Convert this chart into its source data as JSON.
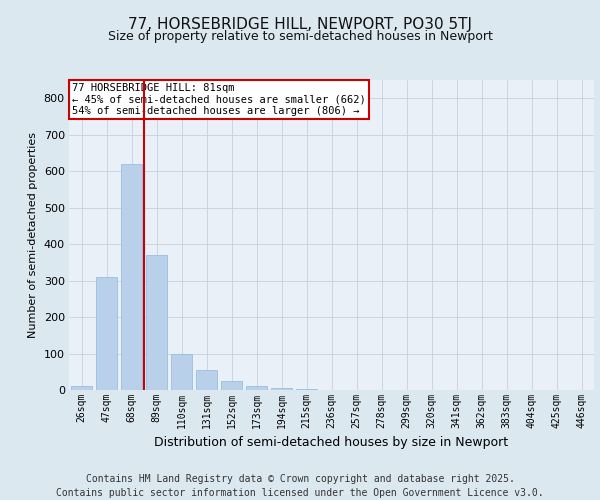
{
  "title_line1": "77, HORSEBRIDGE HILL, NEWPORT, PO30 5TJ",
  "title_line2": "Size of property relative to semi-detached houses in Newport",
  "xlabel": "Distribution of semi-detached houses by size in Newport",
  "ylabel": "Number of semi-detached properties",
  "bar_color": "#b8d0ea",
  "bar_edge_color": "#8fb8dc",
  "background_color": "#dce8f0",
  "plot_bg_color": "#eaf0f8",
  "grid_color": "#c0ccd8",
  "vline_color": "#cc0000",
  "vline_x": 2.5,
  "categories": [
    "26sqm",
    "47sqm",
    "68sqm",
    "89sqm",
    "110sqm",
    "131sqm",
    "152sqm",
    "173sqm",
    "194sqm",
    "215sqm",
    "236sqm",
    "257sqm",
    "278sqm",
    "299sqm",
    "320sqm",
    "341sqm",
    "362sqm",
    "383sqm",
    "404sqm",
    "425sqm",
    "446sqm"
  ],
  "values": [
    10,
    310,
    620,
    370,
    100,
    55,
    25,
    10,
    5,
    2,
    1,
    0,
    0,
    0,
    0,
    0,
    0,
    0,
    0,
    0,
    0
  ],
  "ylim": [
    0,
    850
  ],
  "yticks": [
    0,
    100,
    200,
    300,
    400,
    500,
    600,
    700,
    800
  ],
  "annotation_text": "77 HORSEBRIDGE HILL: 81sqm\n← 45% of semi-detached houses are smaller (662)\n54% of semi-detached houses are larger (806) →",
  "annotation_box_color": "#ffffff",
  "annotation_box_edge": "#cc0000",
  "footer_line1": "Contains HM Land Registry data © Crown copyright and database right 2025.",
  "footer_line2": "Contains public sector information licensed under the Open Government Licence v3.0.",
  "title_fontsize": 11,
  "subtitle_fontsize": 9,
  "footer_fontsize": 7,
  "annotation_fontsize": 7.5,
  "ylabel_fontsize": 8,
  "xlabel_fontsize": 9
}
